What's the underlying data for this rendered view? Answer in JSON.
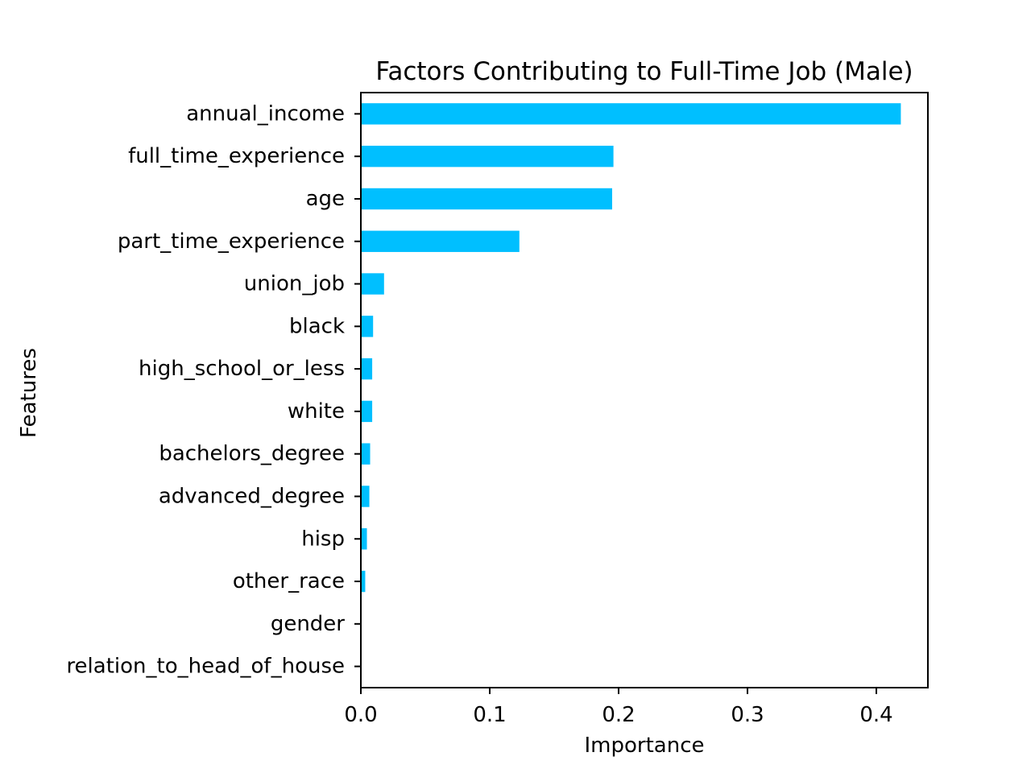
{
  "chart_data": {
    "type": "bar",
    "orientation": "horizontal",
    "title": "Factors Contributing to Full-Time Job (Male)",
    "xlabel": "Importance",
    "ylabel": "Features",
    "categories": [
      "annual_income",
      "full_time_experience",
      "age",
      "part_time_experience",
      "union_job",
      "black",
      "high_school_or_less",
      "white",
      "bachelors_degree",
      "advanced_degree",
      "hisp",
      "other_race",
      "gender",
      "relation_to_head_of_house"
    ],
    "values": [
      0.419,
      0.196,
      0.195,
      0.123,
      0.018,
      0.0095,
      0.0088,
      0.0088,
      0.0072,
      0.0066,
      0.0047,
      0.0034,
      0.0,
      0.0
    ],
    "xlim": [
      0.0,
      0.44
    ],
    "xticks": [
      0.0,
      0.1,
      0.2,
      0.3,
      0.4
    ],
    "xtick_labels": [
      "0.0",
      "0.1",
      "0.2",
      "0.3",
      "0.4"
    ],
    "bar_color": "#00bfff",
    "grid": false,
    "legend": "none"
  }
}
